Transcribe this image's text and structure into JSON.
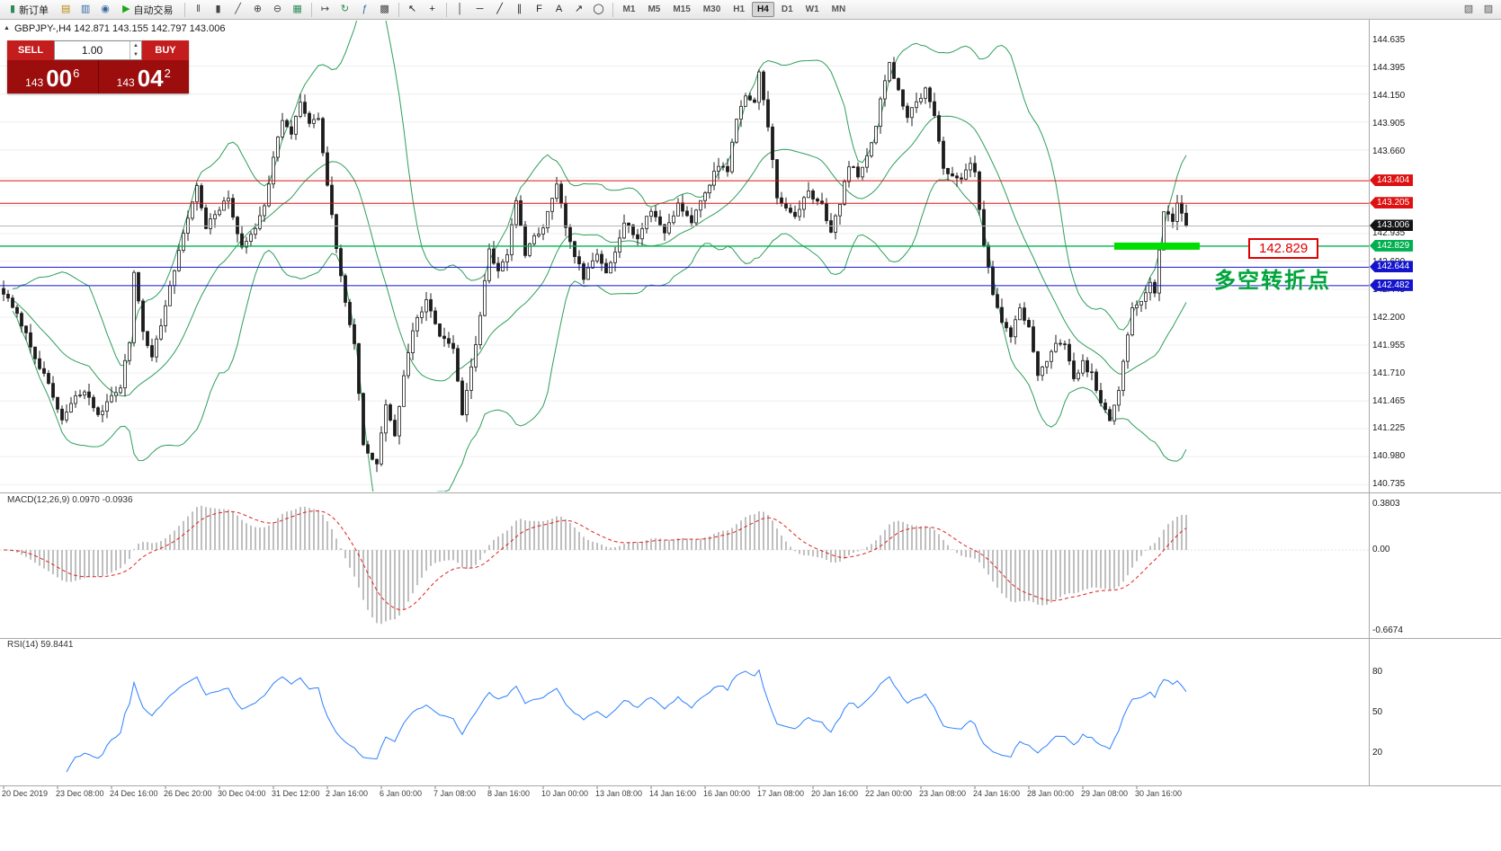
{
  "toolbar": {
    "items": [
      {
        "type": "button",
        "name": "new-order-button",
        "label": "新订单",
        "icon": "candlestick-icon",
        "glyph": "▮",
        "glyph_color": "#2e8b57"
      },
      {
        "type": "icon",
        "name": "charts-cascade-icon",
        "glyph": "▤",
        "color": "#b8860b"
      },
      {
        "type": "icon",
        "name": "market-watch-icon",
        "glyph": "▥",
        "color": "#33689e"
      },
      {
        "type": "icon",
        "name": "data-window-icon",
        "glyph": "◉",
        "color": "#33689e"
      },
      {
        "type": "button",
        "name": "autotrading-button",
        "label": "自动交易",
        "icon": "play-icon",
        "glyph": "▶",
        "glyph_color": "#18a818"
      },
      {
        "type": "sep"
      },
      {
        "type": "icon",
        "name": "bar-chart-mode-icon",
        "glyph": "‖",
        "color": "#444"
      },
      {
        "type": "icon",
        "name": "candlestick-mode-icon",
        "glyph": "▮",
        "color": "#444"
      },
      {
        "type": "icon",
        "name": "line-chart-mode-icon",
        "glyph": "╱",
        "color": "#444"
      },
      {
        "type": "icon",
        "name": "zoom-in-icon",
        "glyph": "⊕",
        "color": "#444"
      },
      {
        "type": "icon",
        "name": "zoom-out-icon",
        "glyph": "⊖",
        "color": "#444"
      },
      {
        "type": "icon",
        "name": "tile-windows-icon",
        "glyph": "▦",
        "color": "#2e8b57"
      },
      {
        "type": "sep"
      },
      {
        "type": "icon",
        "name": "chart-shift-icon",
        "glyph": "↦",
        "color": "#444"
      },
      {
        "type": "icon",
        "name": "auto-scroll-icon",
        "glyph": "↻",
        "color": "#2e8b57"
      },
      {
        "type": "icon",
        "name": "indicators-icon",
        "glyph": "ƒ",
        "color": "#33689e"
      },
      {
        "type": "icon",
        "name": "chart-properties-icon",
        "glyph": "▩",
        "color": "#444"
      },
      {
        "type": "sep"
      },
      {
        "type": "icon",
        "name": "cursor-icon",
        "glyph": "↖",
        "color": "#222"
      },
      {
        "type": "icon",
        "name": "crosshair-icon",
        "glyph": "+",
        "color": "#222"
      },
      {
        "type": "sep"
      },
      {
        "type": "icon",
        "name": "vertical-line-icon",
        "glyph": "│",
        "color": "#222"
      },
      {
        "type": "icon",
        "name": "horizontal-line-icon",
        "glyph": "─",
        "color": "#222"
      },
      {
        "type": "icon",
        "name": "trendline-icon",
        "glyph": "╱",
        "color": "#222"
      },
      {
        "type": "icon",
        "name": "equidistant-channel-icon",
        "glyph": "∥",
        "color": "#222"
      },
      {
        "type": "icon",
        "name": "fibonacci-icon",
        "glyph": "F",
        "color": "#222"
      },
      {
        "type": "icon",
        "name": "text-label-icon",
        "glyph": "A",
        "color": "#222"
      },
      {
        "type": "icon",
        "name": "arrow-objects-icon",
        "glyph": "↗",
        "color": "#222"
      },
      {
        "type": "icon",
        "name": "shapes-icon",
        "glyph": "◯",
        "color": "#222"
      },
      {
        "type": "sep"
      },
      {
        "type": "timeframes"
      },
      {
        "type": "spacer"
      },
      {
        "type": "icon",
        "name": "market-watch-toggle-icon",
        "glyph": "▧",
        "color": "#555"
      },
      {
        "type": "icon",
        "name": "toolbox-toggle-icon",
        "glyph": "▨",
        "color": "#555"
      }
    ],
    "timeframes": {
      "items": [
        "M1",
        "M5",
        "M15",
        "M30",
        "H1",
        "H4",
        "D1",
        "W1",
        "MN"
      ],
      "active": "H4"
    }
  },
  "chart": {
    "symbol_line": "GBPJPY-,H4  142.871 143.155 142.797 143.006",
    "panel_toggle_glyph": "▲",
    "trade_panel": {
      "sell_label": "SELL",
      "buy_label": "BUY",
      "volume": "1.00",
      "spin_up": "▲",
      "spin_down": "▼",
      "sell_price": {
        "prefix": "143",
        "main": "00",
        "sup": "6"
      },
      "buy_price": {
        "prefix": "143",
        "main": "04",
        "sup": "2"
      }
    },
    "annotations": {
      "price_box_label": "142.829",
      "turning_point_label": "多空转折点"
    }
  },
  "chart_data": {
    "type": "candlestick",
    "symbol": "GBPJPY-",
    "timeframe": "H4",
    "ohlc_header": {
      "open": "142.871",
      "high": "143.155",
      "low": "142.797",
      "close": "143.006"
    },
    "price_axis": {
      "min": 140.735,
      "max": 144.635,
      "tick_step": 0.245,
      "visible_ticks": [
        "144.635",
        "144.395",
        "144.150",
        "143.905",
        "143.660",
        "142.935",
        "142.690",
        "142.445",
        "142.200",
        "141.955",
        "141.710",
        "141.465",
        "141.225",
        "140.980",
        "140.735"
      ]
    },
    "price_lines": [
      {
        "price": 143.404,
        "label": "143.404",
        "role": "resistance",
        "line_color": "#dd1111",
        "badge_color": "#dd1111",
        "width": 1
      },
      {
        "price": 143.205,
        "label": "143.205",
        "role": "resistance",
        "line_color": "#dd1111",
        "badge_color": "#dd1111",
        "width": 1
      },
      {
        "price": 143.006,
        "label": "143.006",
        "role": "bid",
        "line_color": "#b5b5b5",
        "badge_color": "#141414",
        "width": 1
      },
      {
        "price": 142.829,
        "label": "142.829",
        "role": "pivot",
        "line_color": "#00b050",
        "badge_color": "#00b050",
        "width": 1.3
      },
      {
        "price": 142.644,
        "label": "142.644",
        "role": "support",
        "line_color": "#1414cc",
        "badge_color": "#1414cc",
        "width": 1
      },
      {
        "price": 142.482,
        "label": "142.482",
        "role": "support",
        "line_color": "#1414cc",
        "badge_color": "#1414cc",
        "width": 1
      }
    ],
    "highlight_segment": {
      "price": 142.829,
      "from": 247,
      "to": 266,
      "color": "#00dd00"
    },
    "bollinger": {
      "period": 20,
      "deviation": 2,
      "color": "#2e9e5b"
    },
    "macd": {
      "label": "MACD(12,26,9) 0.0970 -0.0936",
      "params": [
        12,
        26,
        9
      ],
      "hist_color": "#bfbfbf",
      "signal_color": "#e02020",
      "axis": [
        {
          "label": "0.3803",
          "v": 0.3803
        },
        {
          "label": "0.00",
          "v": 0
        },
        {
          "label": "-0.6674",
          "v": -0.6674
        }
      ]
    },
    "rsi": {
      "label": "RSI(14) 59.8441",
      "period": 14,
      "value": 59.8441,
      "color": "#2a7fff",
      "axis": [
        {
          "label": "80",
          "v": 80
        },
        {
          "label": "50",
          "v": 50
        },
        {
          "label": "20",
          "v": 20
        }
      ]
    },
    "candles": {
      "count": 264,
      "keyframes": [
        [
          0,
          142.42
        ],
        [
          4,
          142.15
        ],
        [
          6,
          141.95
        ],
        [
          10,
          141.6
        ],
        [
          13,
          141.3
        ],
        [
          16,
          141.5
        ],
        [
          18,
          141.55
        ],
        [
          21,
          141.35
        ],
        [
          24,
          141.5
        ],
        [
          26,
          141.6
        ],
        [
          28,
          142.0
        ],
        [
          29,
          142.6
        ],
        [
          31,
          142.1
        ],
        [
          33,
          141.85
        ],
        [
          36,
          142.3
        ],
        [
          40,
          142.95
        ],
        [
          43,
          143.35
        ],
        [
          45,
          143.0
        ],
        [
          47,
          143.1
        ],
        [
          50,
          143.25
        ],
        [
          53,
          142.8
        ],
        [
          56,
          143.0
        ],
        [
          58,
          143.2
        ],
        [
          60,
          143.6
        ],
        [
          62,
          143.95
        ],
        [
          64,
          143.8
        ],
        [
          66,
          144.1
        ],
        [
          68,
          143.9
        ],
        [
          70,
          143.95
        ],
        [
          72,
          143.35
        ],
        [
          75,
          142.55
        ],
        [
          78,
          141.95
        ],
        [
          80,
          141.1
        ],
        [
          83,
          140.9
        ],
        [
          85,
          141.45
        ],
        [
          87,
          141.15
        ],
        [
          89,
          141.7
        ],
        [
          91,
          142.1
        ],
        [
          94,
          142.35
        ],
        [
          97,
          142.05
        ],
        [
          100,
          141.95
        ],
        [
          102,
          141.35
        ],
        [
          105,
          141.95
        ],
        [
          108,
          142.8
        ],
        [
          110,
          142.6
        ],
        [
          112,
          142.75
        ],
        [
          114,
          143.25
        ],
        [
          116,
          142.75
        ],
        [
          118,
          142.9
        ],
        [
          120,
          143.0
        ],
        [
          123,
          143.35
        ],
        [
          126,
          142.85
        ],
        [
          129,
          142.55
        ],
        [
          132,
          142.75
        ],
        [
          134,
          142.6
        ],
        [
          136,
          142.8
        ],
        [
          138,
          143.05
        ],
        [
          141,
          142.9
        ],
        [
          144,
          143.15
        ],
        [
          147,
          142.95
        ],
        [
          150,
          143.2
        ],
        [
          153,
          143.05
        ],
        [
          156,
          143.3
        ],
        [
          159,
          143.55
        ],
        [
          161,
          143.5
        ],
        [
          163,
          143.95
        ],
        [
          165,
          144.15
        ],
        [
          167,
          144.1
        ],
        [
          168,
          144.35
        ],
        [
          170,
          143.9
        ],
        [
          172,
          143.25
        ],
        [
          174,
          143.15
        ],
        [
          176,
          143.1
        ],
        [
          179,
          143.3
        ],
        [
          182,
          143.2
        ],
        [
          184,
          142.95
        ],
        [
          186,
          143.2
        ],
        [
          188,
          143.55
        ],
        [
          190,
          143.45
        ],
        [
          192,
          143.6
        ],
        [
          194,
          143.9
        ],
        [
          196,
          144.3
        ],
        [
          197,
          144.45
        ],
        [
          199,
          144.2
        ],
        [
          201,
          143.95
        ],
        [
          203,
          144.1
        ],
        [
          205,
          144.2
        ],
        [
          207,
          144.0
        ],
        [
          209,
          143.5
        ],
        [
          211,
          143.45
        ],
        [
          213,
          143.4
        ],
        [
          215,
          143.55
        ],
        [
          216,
          143.5
        ],
        [
          218,
          142.85
        ],
        [
          220,
          142.4
        ],
        [
          222,
          142.15
        ],
        [
          224,
          142.05
        ],
        [
          226,
          142.3
        ],
        [
          228,
          142.1
        ],
        [
          230,
          141.7
        ],
        [
          232,
          141.8
        ],
        [
          234,
          142.0
        ],
        [
          236,
          141.95
        ],
        [
          238,
          141.65
        ],
        [
          240,
          141.8
        ],
        [
          242,
          141.7
        ],
        [
          244,
          141.45
        ],
        [
          246,
          141.3
        ],
        [
          248,
          141.55
        ],
        [
          250,
          142.05
        ],
        [
          251,
          142.3
        ],
        [
          253,
          142.35
        ],
        [
          255,
          142.5
        ],
        [
          256,
          142.4
        ],
        [
          257,
          142.8
        ],
        [
          258,
          143.15
        ],
        [
          260,
          143.05
        ],
        [
          261,
          143.2
        ],
        [
          263,
          143.006
        ]
      ]
    },
    "time_axis": [
      "20 Dec 2019",
      "23 Dec 08:00",
      "24 Dec 16:00",
      "26 Dec 20:00",
      "30 Dec 04:00",
      "31 Dec 12:00",
      "2 Jan 16:00",
      "6 Jan 00:00",
      "7 Jan 08:00",
      "8 Jan 16:00",
      "10 Jan 00:00",
      "13 Jan 08:00",
      "14 Jan 16:00",
      "16 Jan 00:00",
      "17 Jan 08:00",
      "20 Jan 16:00",
      "22 Jan 00:00",
      "23 Jan 08:00",
      "24 Jan 16:00",
      "28 Jan 00:00",
      "29 Jan 08:00",
      "30 Jan 16:00"
    ]
  }
}
